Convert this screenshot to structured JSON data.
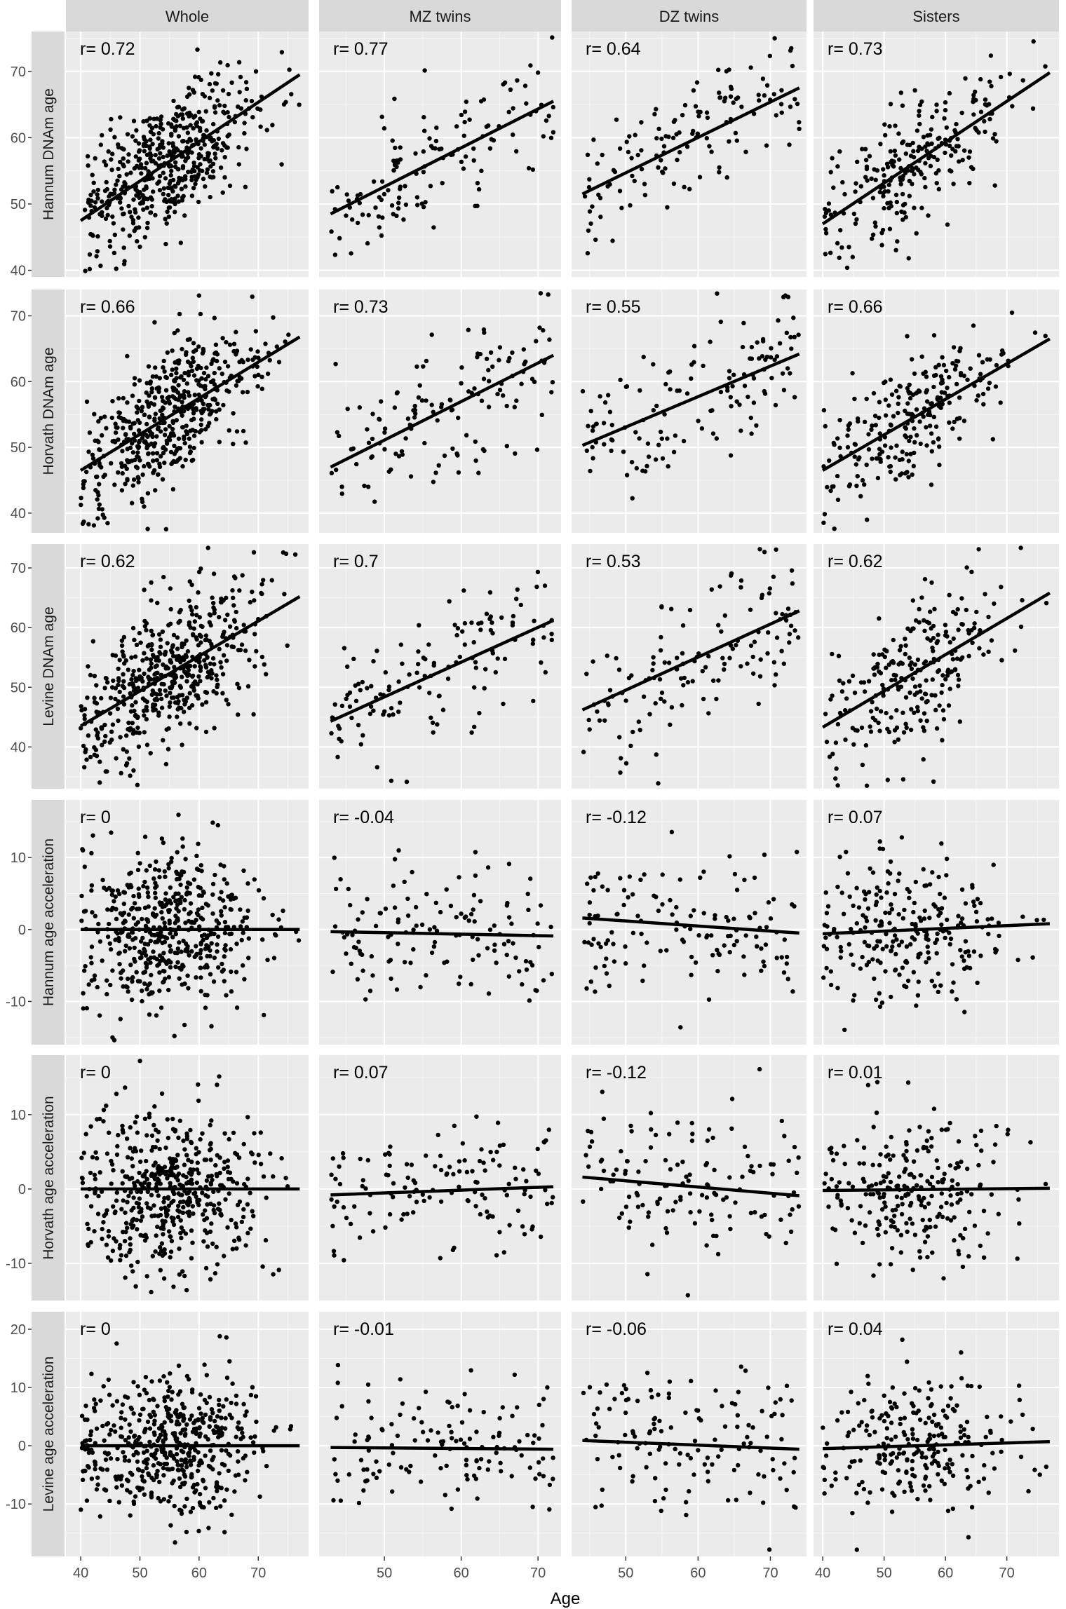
{
  "chart_data": {
    "type": "scatter",
    "facet_columns": [
      "Whole",
      "MZ twins",
      "DZ twins",
      "Sisters"
    ],
    "xlabel": "Age",
    "x_ticks": [
      [
        40,
        50,
        60,
        70
      ],
      [
        50,
        60,
        70
      ],
      [
        50,
        60,
        70
      ],
      [
        40,
        50,
        60,
        70
      ]
    ],
    "xlim": [
      [
        37.5,
        78.5
      ],
      [
        41.5,
        73.0
      ],
      [
        42.5,
        75.0
      ],
      [
        38.5,
        78.5
      ]
    ],
    "grid": true,
    "facet_rows": [
      {
        "ylabel": "Hannum DNAm age",
        "ylim": [
          39,
          76
        ],
        "y_ticks": [
          40,
          50,
          60,
          70
        ],
        "panels": [
          {
            "r_label": "r= 0.72",
            "fit": {
              "x": [
                40,
                77
              ],
              "y": [
                47.5,
                69.5
              ]
            }
          },
          {
            "r_label": "r= 0.77",
            "fit": {
              "x": [
                43,
                72
              ],
              "y": [
                48.5,
                65.5
              ]
            }
          },
          {
            "r_label": "r= 0.64",
            "fit": {
              "x": [
                44,
                74
              ],
              "y": [
                51.5,
                67.5
              ]
            }
          },
          {
            "r_label": "r= 0.73",
            "fit": {
              "x": [
                40,
                77
              ],
              "y": [
                47.0,
                69.8
              ]
            }
          }
        ]
      },
      {
        "ylabel": "Horvath DNAm age",
        "ylim": [
          37,
          74
        ],
        "y_ticks": [
          40,
          50,
          60,
          70
        ],
        "panels": [
          {
            "r_label": "r= 0.66",
            "fit": {
              "x": [
                40,
                77
              ],
              "y": [
                46.5,
                66.8
              ]
            }
          },
          {
            "r_label": "r= 0.73",
            "fit": {
              "x": [
                43,
                72
              ],
              "y": [
                47.0,
                64.0
              ]
            }
          },
          {
            "r_label": "r= 0.55",
            "fit": {
              "x": [
                44,
                74
              ],
              "y": [
                50.3,
                64.2
              ]
            }
          },
          {
            "r_label": "r= 0.66",
            "fit": {
              "x": [
                40,
                77
              ],
              "y": [
                46.5,
                66.5
              ]
            }
          }
        ]
      },
      {
        "ylabel": "Levine DNAm age",
        "ylim": [
          33,
          74
        ],
        "y_ticks": [
          40,
          50,
          60,
          70
        ],
        "panels": [
          {
            "r_label": "r= 0.62",
            "fit": {
              "x": [
                40,
                77
              ],
              "y": [
                43.5,
                65.2
              ]
            }
          },
          {
            "r_label": "r= 0.7",
            "fit": {
              "x": [
                43,
                72
              ],
              "y": [
                44.3,
                61.2
              ]
            }
          },
          {
            "r_label": "r= 0.53",
            "fit": {
              "x": [
                44,
                74
              ],
              "y": [
                46.2,
                62.8
              ]
            }
          },
          {
            "r_label": "r= 0.62",
            "fit": {
              "x": [
                40,
                77
              ],
              "y": [
                43.3,
                65.8
              ]
            }
          }
        ]
      },
      {
        "ylabel": "Hannum age acceleration",
        "ylim": [
          -16,
          18
        ],
        "y_ticks": [
          -10,
          0,
          10
        ],
        "panels": [
          {
            "r_label": "r= 0",
            "fit": {
              "x": [
                40,
                77
              ],
              "y": [
                0.0,
                0.0
              ]
            }
          },
          {
            "r_label": "r= -0.04",
            "fit": {
              "x": [
                43,
                72
              ],
              "y": [
                -0.3,
                -0.9
              ]
            }
          },
          {
            "r_label": "r= -0.12",
            "fit": {
              "x": [
                44,
                74
              ],
              "y": [
                1.6,
                -0.5
              ]
            }
          },
          {
            "r_label": "r= 0.07",
            "fit": {
              "x": [
                40,
                77
              ],
              "y": [
                -0.6,
                0.8
              ]
            }
          }
        ]
      },
      {
        "ylabel": "Horvath age acceleration",
        "ylim": [
          -15,
          18
        ],
        "y_ticks": [
          -10,
          0,
          10
        ],
        "panels": [
          {
            "r_label": "r= 0",
            "fit": {
              "x": [
                40,
                77
              ],
              "y": [
                0.0,
                0.0
              ]
            }
          },
          {
            "r_label": "r= 0.07",
            "fit": {
              "x": [
                43,
                72
              ],
              "y": [
                -0.8,
                0.3
              ]
            }
          },
          {
            "r_label": "r= -0.12",
            "fit": {
              "x": [
                44,
                74
              ],
              "y": [
                1.6,
                -0.9
              ]
            }
          },
          {
            "r_label": "r= 0.01",
            "fit": {
              "x": [
                40,
                77
              ],
              "y": [
                -0.2,
                0.1
              ]
            }
          }
        ]
      },
      {
        "ylabel": "Levine age acceleration",
        "ylim": [
          -19,
          23
        ],
        "y_ticks": [
          -10,
          0,
          10,
          20
        ],
        "panels": [
          {
            "r_label": "r= 0",
            "fit": {
              "x": [
                40,
                77
              ],
              "y": [
                0.0,
                0.0
              ]
            }
          },
          {
            "r_label": "r= -0.01",
            "fit": {
              "x": [
                43,
                72
              ],
              "y": [
                -0.3,
                -0.6
              ]
            }
          },
          {
            "r_label": "r= -0.06",
            "fit": {
              "x": [
                44,
                74
              ],
              "y": [
                0.9,
                -0.6
              ]
            }
          },
          {
            "r_label": "r= 0.04",
            "fit": {
              "x": [
                40,
                77
              ],
              "y": [
                -0.5,
                0.7
              ]
            }
          }
        ]
      }
    ],
    "points": {
      "count_per_column": [
        520,
        135,
        135,
        250
      ],
      "x_range": [
        [
          40,
          77
        ],
        [
          43,
          72
        ],
        [
          44,
          74
        ],
        [
          40,
          77
        ]
      ],
      "residual_sd": [
        [
          5,
          5,
          6,
          5.5,
          5.5,
          6
        ],
        [
          5,
          5,
          6,
          4.5,
          4.5,
          5.5
        ],
        [
          5,
          5,
          6,
          5,
          5,
          6
        ],
        [
          5,
          5,
          6,
          5,
          5,
          6
        ]
      ]
    }
  }
}
